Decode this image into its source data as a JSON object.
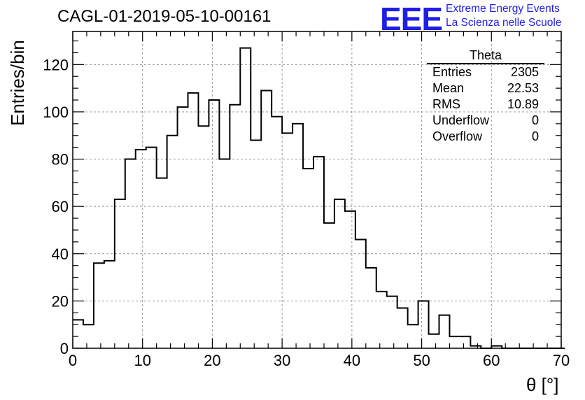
{
  "title": "CAGL-01-2019-05-10-00161",
  "logo": {
    "mark": "EEE",
    "line1": "Extreme Energy Events",
    "line2": "La Scienza nelle Scuole",
    "color": "#1f1fe8"
  },
  "stats": {
    "name": "Theta",
    "rows": [
      {
        "label": "Entries",
        "value": "2305"
      },
      {
        "label": "Mean",
        "value": "22.53"
      },
      {
        "label": "RMS",
        "value": "10.89"
      },
      {
        "label": "Underflow",
        "value": "0"
      },
      {
        "label": "Overflow",
        "value": "0"
      }
    ]
  },
  "chart_data": {
    "type": "bar",
    "style": "step-histogram",
    "xlabel": "θ [°]",
    "ylabel": "Entries/bin",
    "xlim": [
      0,
      70
    ],
    "ylim": [
      0,
      134
    ],
    "xticks": [
      0,
      10,
      20,
      30,
      40,
      50,
      60,
      70
    ],
    "yticks": [
      0,
      20,
      40,
      60,
      80,
      100,
      120
    ],
    "grid": true,
    "bin_width": 1.5,
    "values": [
      12,
      10,
      36,
      37,
      63,
      80,
      84,
      85,
      72,
      90,
      102,
      108,
      94,
      105,
      80,
      103,
      127,
      88,
      109,
      98,
      91,
      95,
      76,
      81,
      53,
      63,
      58,
      46,
      34,
      24,
      22,
      17,
      10,
      20,
      6,
      14,
      5,
      5,
      1,
      0,
      1,
      0,
      0,
      0,
      0,
      0,
      0
    ]
  }
}
